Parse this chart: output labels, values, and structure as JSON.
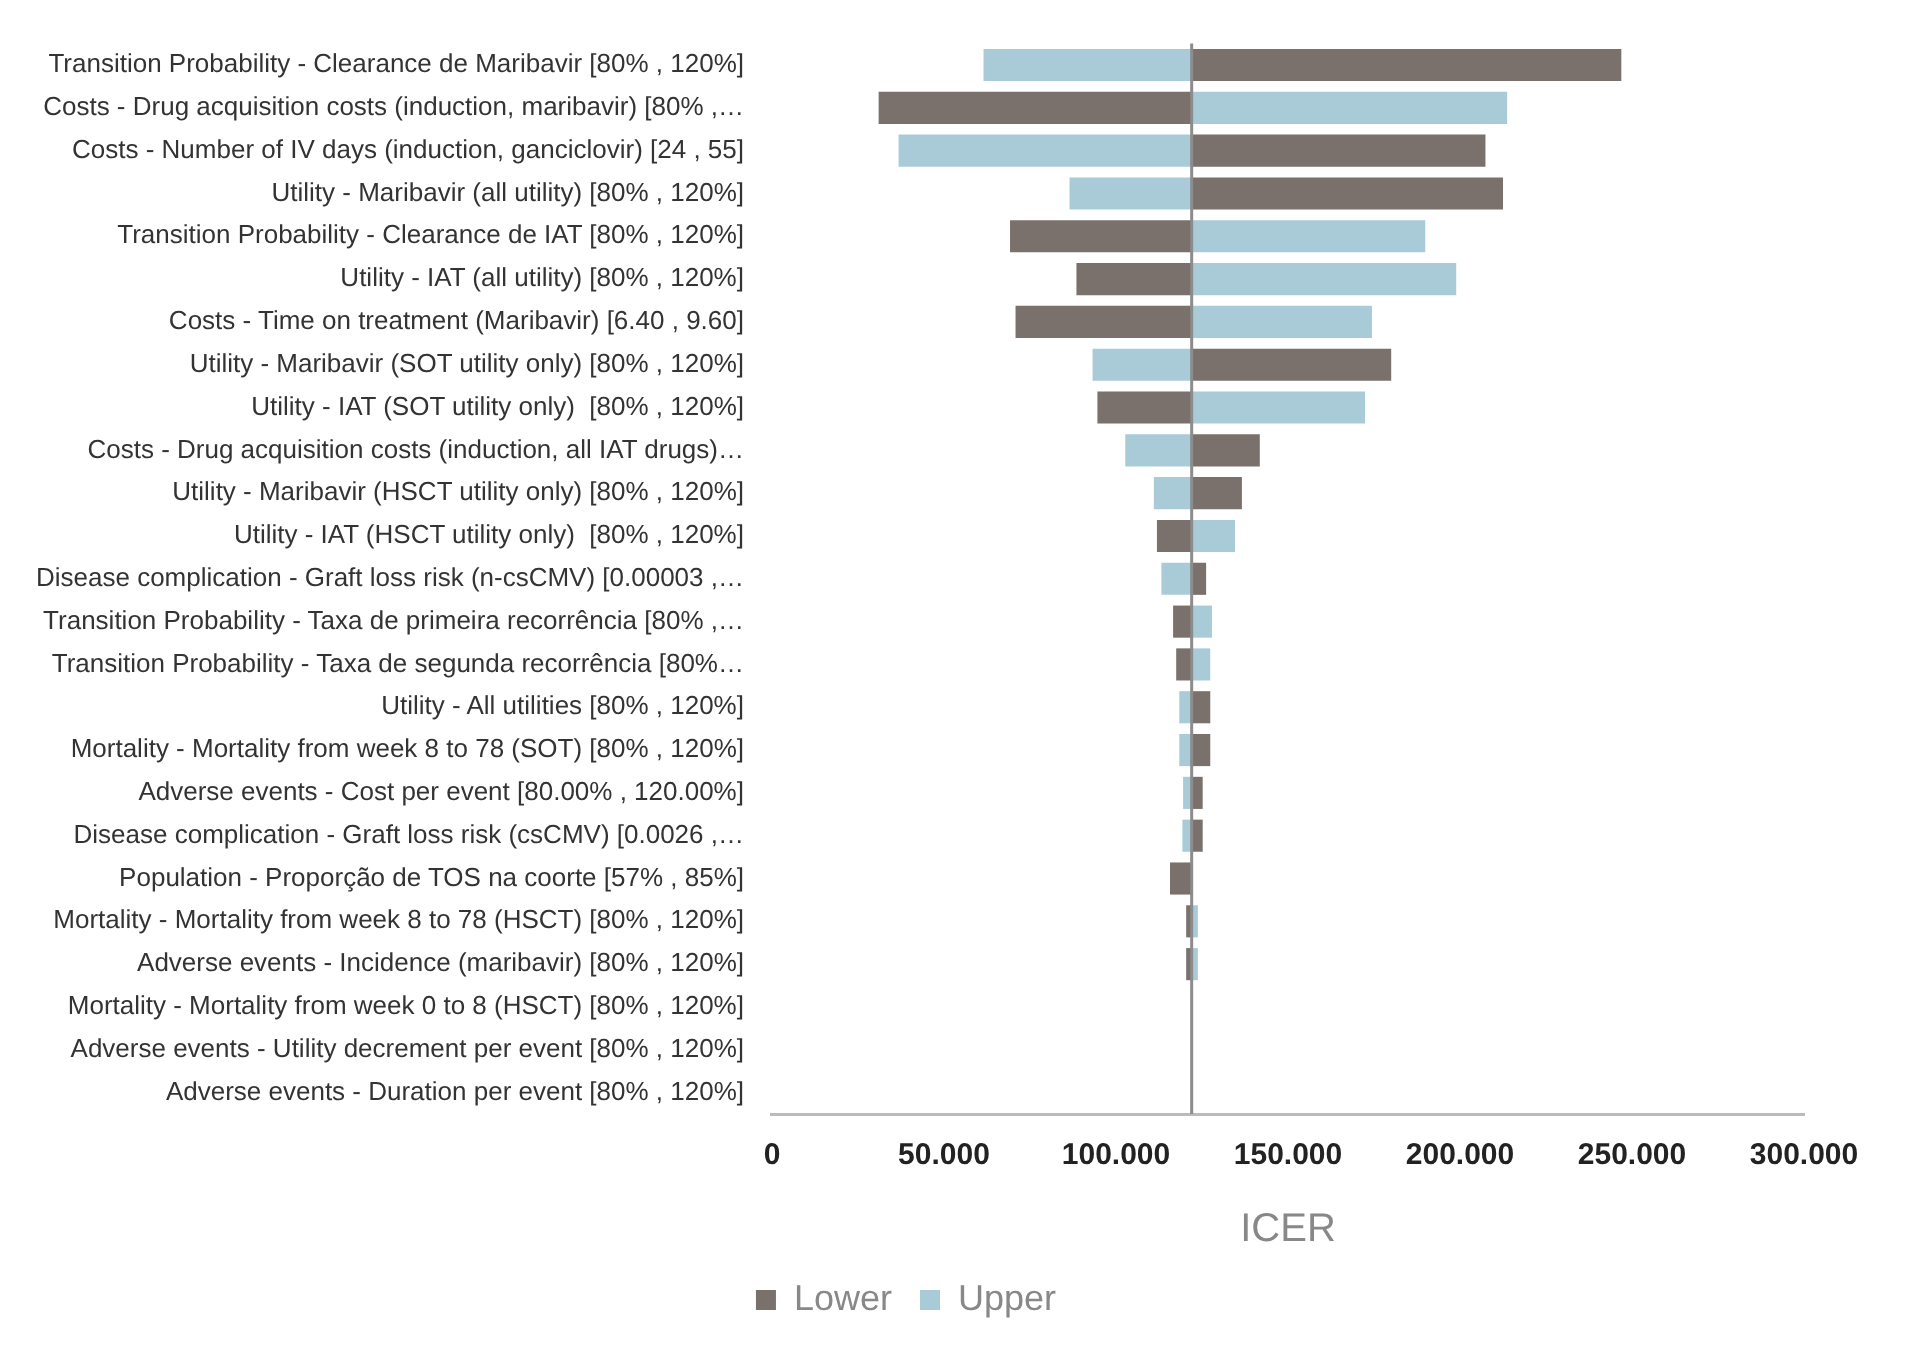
{
  "chart_data": {
    "type": "bar",
    "orientation": "horizontal",
    "xlabel": "ICER",
    "categories": [
      "Transition Probability - Clearance de Maribavir [80% , 120%]",
      "Costs - Drug acquisition costs (induction, maribavir) [80% ,…",
      "Costs - Number of IV days (induction, ganciclovir) [24 , 55]",
      "Utility - Maribavir (all utility) [80% , 120%]",
      "Transition Probability - Clearance de IAT [80% , 120%]",
      "Utility - IAT (all utility) [80% , 120%]",
      "Costs - Time on treatment (Maribavir) [6.40 , 9.60]",
      "Utility - Maribavir (SOT utility only) [80% , 120%]",
      "Utility - IAT (SOT utility only)  [80% , 120%]",
      "Costs - Drug acquisition costs (induction, all IAT drugs)…",
      "Utility - Maribavir (HSCT utility only) [80% , 120%]",
      "Utility - IAT (HSCT utility only)  [80% , 120%]",
      "Disease complication - Graft loss risk (n-csCMV) [0.00003 ,…",
      "Transition Probability - Taxa de primeira recorrência [80% ,…",
      "Transition Probability - Taxa de segunda recorrência [80%…",
      "Utility - All utilities [80% , 120%]",
      "Mortality - Mortality from week 8 to 78 (SOT) [80% , 120%]",
      "Adverse events - Cost per event [80.00% , 120.00%]",
      "Disease complication - Graft loss risk (csCMV) [0.0026 ,…",
      "Population - Proporção de TOS na coorte [57% , 85%]",
      "Mortality - Mortality from week 8 to 78 (HSCT) [80% , 120%]",
      "Adverse events - Incidence (maribavir) [80% , 120%]",
      "Mortality - Mortality from week 0 to 8 (HSCT) [80% , 120%]",
      "Adverse events - Utility decrement per event [80% , 120%]",
      "Adverse events - Duration per event [80% , 120%]"
    ],
    "series": [
      {
        "name": "Lower",
        "color": "#7a716c",
        "base": [
          122,
          31.0,
          122,
          122,
          69.2,
          88.5,
          70.8,
          122,
          94.6,
          122,
          122,
          111.9,
          122,
          116.6,
          117.5,
          122,
          122,
          122,
          122,
          115.7,
          120.4,
          120.4,
          null,
          null,
          null
        ],
        "values": [
          124.9,
          91.0,
          85.4,
          90.5,
          52.8,
          33.5,
          51.2,
          58.0,
          27.4,
          19.8,
          14.6,
          10.1,
          4.2,
          5.4,
          4.5,
          5.4,
          5.4,
          3.2,
          3.2,
          6.3,
          1.6,
          1.6,
          null,
          null,
          null
        ]
      },
      {
        "name": "Upper",
        "color": "#a9cbd8",
        "base": [
          61.5,
          122,
          36.8,
          86.5,
          122,
          122,
          122,
          93.2,
          122,
          102.7,
          111.0,
          122,
          113.2,
          122,
          122,
          118.4,
          118.4,
          119.5,
          119.3,
          null,
          122,
          122,
          null,
          null,
          null
        ],
        "values": [
          60.5,
          91.7,
          85.2,
          35.5,
          67.9,
          76.9,
          52.4,
          28.8,
          50.4,
          19.3,
          11.0,
          12.6,
          8.8,
          5.9,
          5.4,
          3.6,
          3.6,
          2.5,
          2.7,
          null,
          1.8,
          1.8,
          null,
          null,
          null
        ]
      }
    ],
    "xlim": [
      0,
      300
    ],
    "xticks": [
      0,
      {
        "value": 50,
        "label": "50.000"
      },
      {
        "value": 100,
        "label": "100.000"
      },
      {
        "value": 150,
        "label": "150.000"
      },
      {
        "value": 200,
        "label": "200.000"
      },
      {
        "value": 250,
        "label": "250.000"
      },
      {
        "value": 300,
        "label": "300.000"
      }
    ],
    "ref_lines": [
      {
        "axis": "x",
        "value": 122,
        "color": "#8c8c8c"
      }
    ],
    "grid": false,
    "legend": "bottom"
  }
}
